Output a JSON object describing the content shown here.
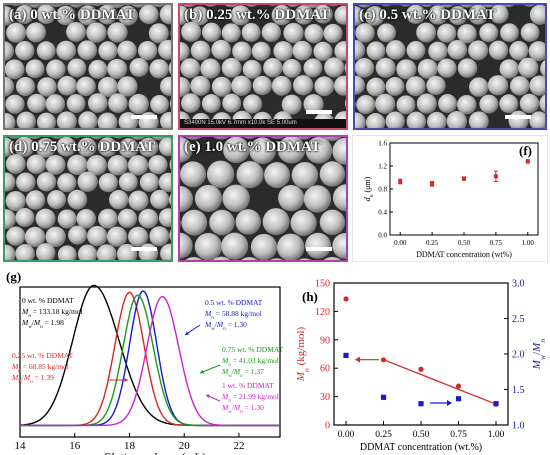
{
  "colors": {
    "black": "#000000",
    "red": "#d62728",
    "green": "#1a9a1a",
    "blue": "#1a1acc",
    "magenta": "#cc22cc",
    "navy": "#1a1a99"
  },
  "sem_panels": [
    {
      "label": "(a) 0 wt.% DDMAT",
      "border": "#777777",
      "sphere": "large",
      "footer": ""
    },
    {
      "label": "(b) 0.25 wt.% DDMAT",
      "border": "#c84a6a",
      "sphere": "large",
      "footer": "S3400N 15.0kV 6.7mm x10.0k SE                                 5.00um"
    },
    {
      "label": "(c) 0.5 wt.% DDMAT",
      "border": "#4a4ab0",
      "sphere": "large",
      "footer": ""
    },
    {
      "label": "(d) 0.75 wt.% DDMAT",
      "border": "#3a9a6a",
      "sphere": "large",
      "footer": ""
    },
    {
      "label": "(e) 1.0 wt.% DDMAT",
      "border": "#b040b0",
      "sphere": "xlarge",
      "footer": ""
    }
  ],
  "chart_data": [
    {
      "panel": "(f)",
      "type": "scatter",
      "xlabel": "DDMAT concentration (wt%)",
      "ylabel": "d_n (μm)",
      "x_ticks": [
        "0.00",
        "0.25",
        "0.50",
        "0.75",
        "1.00"
      ],
      "y_ticks": [
        "0.0",
        "0.4",
        "0.8",
        "1.2",
        "1.6"
      ],
      "xlim": [
        -0.08,
        1.08
      ],
      "ylim": [
        0,
        1.6
      ],
      "x": [
        0,
        0.25,
        0.5,
        0.75,
        1.0
      ],
      "y": [
        0.93,
        0.89,
        0.98,
        1.02,
        1.28
      ],
      "err": [
        0.04,
        0.04,
        0.03,
        0.09,
        0.03
      ],
      "color": "#d62728"
    },
    {
      "panel": "(g)",
      "type": "line",
      "xlabel": "Elution volume (mL)",
      "x_ticks": [
        "14",
        "16",
        "18",
        "20",
        "22"
      ],
      "xlim": [
        14,
        23.5
      ],
      "series": [
        {
          "color": "#000000",
          "peak": 16.7,
          "width_left": 1.1,
          "width_right": 1.3,
          "height": 1.0
        },
        {
          "color": "#d62728",
          "peak": 18.0,
          "width_left": 0.75,
          "width_right": 0.75,
          "height": 0.95
        },
        {
          "color": "#1a1acc",
          "peak": 18.5,
          "width_left": 0.7,
          "width_right": 0.7,
          "height": 0.96
        },
        {
          "color": "#1a9a1a",
          "peak": 18.3,
          "width_left": 0.75,
          "width_right": 0.8,
          "height": 0.93
        },
        {
          "color": "#cc22cc",
          "peak": 19.2,
          "width_left": 0.8,
          "width_right": 0.85,
          "height": 0.92
        }
      ],
      "annotations": [
        {
          "color": "#000000",
          "l1": "0 wt. % DDMAT",
          "l2": "M_n = 133.18 kg/mol",
          "l3": "M_w/M_n = 1.98"
        },
        {
          "color": "#d62728",
          "l1": "0.25 wt. % DDMAT",
          "l2": "M_n = 68.85 kg/mol",
          "l3": "M_w/M_n = 1.39"
        },
        {
          "color": "#1a1acc",
          "l1": "0.5 wt. % DDMAT",
          "l2": "M_n = 58.88 kg/mol",
          "l3": "M_w/M_n = 1.30"
        },
        {
          "color": "#1a9a1a",
          "l1": "0.75 wt. % DDMAT",
          "l2": "M_n = 41.03 kg/mol",
          "l3": "M_w/M_n = 1.37"
        },
        {
          "color": "#cc22cc",
          "l1": "1 wt. % DDMAT",
          "l2": "M_n = 21.99 kg/mol",
          "l3": "M_w/M_n = 1.30"
        }
      ]
    },
    {
      "panel": "(h)",
      "type": "scatter",
      "xlabel": "DDMAT concentration (wt.%)",
      "ylabel_left": "M_n (kg/mol)",
      "ylabel_right": "M_w/M_n",
      "x_ticks": [
        "0.00",
        "0.25",
        "0.50",
        "0.75",
        "1.00"
      ],
      "yleft_ticks": [
        "0",
        "30",
        "60",
        "90",
        "120",
        "150"
      ],
      "yright_ticks": [
        "1.0",
        "1.5",
        "2.0",
        "2.5",
        "3.0"
      ],
      "xlim": [
        -0.08,
        1.08
      ],
      "yleft_lim": [
        0,
        150
      ],
      "yright_lim": [
        1.0,
        3.0
      ],
      "x": [
        0,
        0.25,
        0.5,
        0.75,
        1.0
      ],
      "mn": [
        133.18,
        68.85,
        58.88,
        41.03,
        21.99
      ],
      "pdi": [
        1.98,
        1.39,
        1.3,
        1.37,
        1.3
      ],
      "fit_line": [
        [
          0.25,
          69
        ],
        [
          1.0,
          22
        ]
      ],
      "mn_color": "#d62728",
      "pdi_color": "#1a1acc"
    }
  ]
}
